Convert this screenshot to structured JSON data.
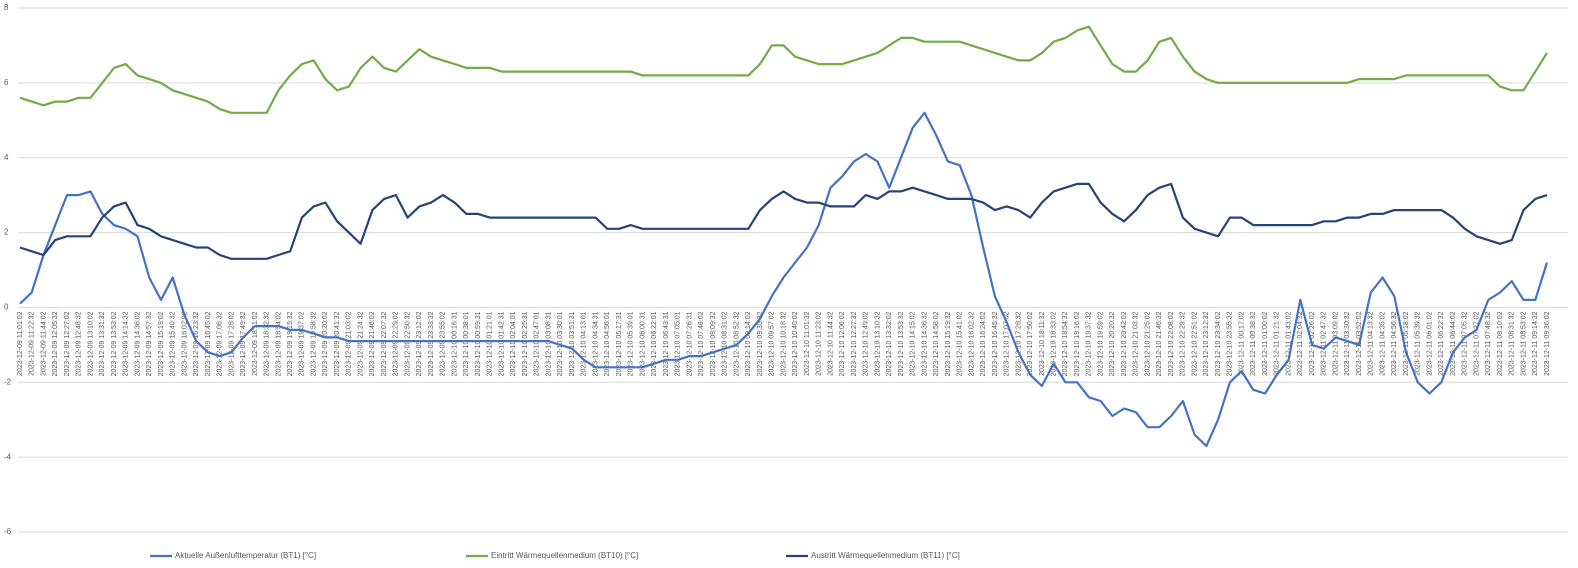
{
  "chart_data": {
    "type": "line",
    "categories": [
      "2023-12-09 11:01:02",
      "2023-12-09 11:22:32",
      "2023-12-09 11:44:02",
      "2023-12-09 12:05:32",
      "2023-12-09 12:27:02",
      "2023-12-09 12:48:32",
      "2023-12-09 13:10:02",
      "2023-12-09 13:31:32",
      "2023-12-09 13:53:02",
      "2023-12-09 14:14:32",
      "2023-12-09 14:36:02",
      "2023-12-09 14:57:32",
      "2023-12-09 15:19:02",
      "2023-12-09 15:40:32",
      "2023-12-09 16:02:02",
      "2023-12-09 16:23:32",
      "2023-12-09 16:45:02",
      "2023-12-09 17:06:32",
      "2023-12-09 17:28:02",
      "2023-12-09 17:49:32",
      "2023-12-09 18:11:02",
      "2023-12-09 18:32:32",
      "2023-12-09 18:54:02",
      "2023-12-09 19:15:32",
      "2023-12-09 19:37:02",
      "2023-12-09 19:58:32",
      "2023-12-09 20:20:02",
      "2023-12-09 20:41:32",
      "2023-12-09 21:03:02",
      "2023-12-09 21:24:32",
      "2023-12-09 21:46:02",
      "2023-12-09 22:07:32",
      "2023-12-09 22:29:02",
      "2023-12-09 22:50:32",
      "2023-12-09 23:12:02",
      "2023-12-09 23:33:32",
      "2023-12-09 23:55:02",
      "2023-12-10 00:16:31",
      "2023-12-10 00:38:01",
      "2023-12-10 00:59:31",
      "2023-12-10 01:21:01",
      "2023-12-10 01:42:31",
      "2023-12-10 02:04:01",
      "2023-12-10 02:25:31",
      "2023-12-10 02:47:01",
      "2023-12-10 03:08:31",
      "2023-12-10 03:30:01",
      "2023-12-10 03:51:31",
      "2023-12-10 04:13:01",
      "2023-12-10 04:34:31",
      "2023-12-10 04:56:01",
      "2023-12-10 05:17:31",
      "2023-12-10 05:39:01",
      "2023-12-10 06:00:31",
      "2023-12-10 06:22:01",
      "2023-12-10 06:43:31",
      "2023-12-10 07:05:01",
      "2023-12-10 07:26:31",
      "2023-12-10 07:48:02",
      "2023-12-10 08:09:32",
      "2023-12-10 08:31:02",
      "2023-12-10 08:52:32",
      "2023-12-10 09:14:02",
      "2023-12-10 09:35:32",
      "2023-12-10 09:57:02",
      "2023-12-10 10:18:32",
      "2023-12-10 10:40:02",
      "2023-12-10 11:01:32",
      "2023-12-10 11:23:02",
      "2023-12-10 11:44:32",
      "2023-12-10 12:06:02",
      "2023-12-10 12:27:32",
      "2023-12-10 12:49:02",
      "2023-12-10 13:10:32",
      "2023-12-10 13:32:02",
      "2023-12-10 13:53:32",
      "2023-12-10 14:15:02",
      "2023-12-10 14:36:32",
      "2023-12-10 14:58:02",
      "2023-12-10 15:19:32",
      "2023-12-10 15:41:02",
      "2023-12-10 16:02:32",
      "2023-12-10 16:24:02",
      "2023-12-10 16:45:32",
      "2023-12-10 17:07:02",
      "2023-12-10 17:28:32",
      "2023-12-10 17:50:02",
      "2023-12-10 18:11:32",
      "2023-12-10 18:33:02",
      "2023-12-10 18:54:32",
      "2023-12-10 19:16:02",
      "2023-12-10 19:37:32",
      "2023-12-10 19:59:02",
      "2023-12-10 20:20:32",
      "2023-12-10 20:42:02",
      "2023-12-10 21:03:32",
      "2023-12-10 21:25:02",
      "2023-12-10 21:46:32",
      "2023-12-10 22:08:02",
      "2023-12-10 22:29:32",
      "2023-12-10 22:51:02",
      "2023-12-10 23:12:32",
      "2023-12-10 23:34:02",
      "2023-12-10 23:55:32",
      "2023-12-11 00:17:02",
      "2023-12-11 00:38:32",
      "2023-12-11 01:00:02",
      "2023-12-11 01:21:32",
      "2023-12-11 01:43:02",
      "2023-12-11 02:04:32",
      "2023-12-11 02:26:02",
      "2023-12-11 02:47:32",
      "2023-12-11 03:09:02",
      "2023-12-11 03:30:32",
      "2023-12-11 03:52:02",
      "2023-12-11 04:13:32",
      "2023-12-11 04:35:02",
      "2023-12-11 04:56:32",
      "2023-12-11 05:18:02",
      "2023-12-11 05:39:32",
      "2023-12-11 06:01:02",
      "2023-12-11 06:22:32",
      "2023-12-11 06:44:02",
      "2023-12-11 07:05:32",
      "2023-12-11 07:27:02",
      "2023-12-11 07:48:32",
      "2023-12-11 08:10:02",
      "2023-12-11 08:31:32",
      "2023-12-11 08:53:02",
      "2023-12-11 09:14:32",
      "2023-12-11 09:36:02"
    ],
    "series": [
      {
        "name": "Aktuelle Außenlufttemperatur (BT1) [°C]",
        "color": "#4472c4",
        "values": [
          0.1,
          0.4,
          1.4,
          2.2,
          3.0,
          3.0,
          3.1,
          2.5,
          2.2,
          2.1,
          1.9,
          0.8,
          0.2,
          0.8,
          -0.2,
          -0.9,
          -1.2,
          -1.3,
          -1.2,
          -0.8,
          -0.5,
          -0.5,
          -0.5,
          -0.6,
          -0.6,
          -0.7,
          -0.8,
          -0.8,
          -0.9,
          -0.9,
          -0.9,
          -0.9,
          -0.9,
          -0.9,
          -0.9,
          -0.9,
          -0.9,
          -0.9,
          -0.9,
          -0.9,
          -0.9,
          -0.9,
          -0.9,
          -0.9,
          -0.9,
          -0.9,
          -1.0,
          -1.1,
          -1.4,
          -1.6,
          -1.6,
          -1.6,
          -1.6,
          -1.6,
          -1.5,
          -1.4,
          -1.4,
          -1.3,
          -1.3,
          -1.2,
          -1.1,
          -1.0,
          -0.7,
          -0.3,
          0.3,
          0.8,
          1.2,
          1.6,
          2.2,
          3.2,
          3.5,
          3.9,
          4.1,
          3.9,
          3.2,
          4.0,
          4.8,
          5.2,
          4.6,
          3.9,
          3.8,
          3.0,
          1.6,
          0.3,
          -0.4,
          -1.2,
          -1.8,
          -2.1,
          -1.5,
          -2.0,
          -2.0,
          -2.4,
          -2.5,
          -2.9,
          -2.7,
          -2.8,
          -3.2,
          -3.2,
          -2.9,
          -2.5,
          -3.4,
          -3.7,
          -3.0,
          -2.0,
          -1.7,
          -2.2,
          -2.3,
          -1.8,
          -1.4,
          0.2,
          -1.0,
          -1.1,
          -0.8,
          -0.9,
          -1.0,
          0.4,
          0.8,
          0.3,
          -1.2,
          -2.0,
          -2.3,
          -2.0,
          -1.2,
          -0.8,
          -0.6,
          0.2,
          0.4,
          0.7,
          0.2,
          0.2,
          1.2
        ]
      },
      {
        "name": "Eintritt Wärmequellenmedium (BT10) [°C]",
        "color": "#70ad47",
        "values": [
          5.6,
          5.5,
          5.4,
          5.5,
          5.5,
          5.6,
          5.6,
          6.0,
          6.4,
          6.5,
          6.2,
          6.1,
          6.0,
          5.8,
          5.7,
          5.6,
          5.5,
          5.3,
          5.2,
          5.2,
          5.2,
          5.2,
          5.8,
          6.2,
          6.5,
          6.6,
          6.1,
          5.8,
          5.9,
          6.4,
          6.7,
          6.4,
          6.3,
          6.6,
          6.9,
          6.7,
          6.6,
          6.5,
          6.4,
          6.4,
          6.4,
          6.3,
          6.3,
          6.3,
          6.3,
          6.3,
          6.3,
          6.3,
          6.3,
          6.3,
          6.3,
          6.3,
          6.3,
          6.2,
          6.2,
          6.2,
          6.2,
          6.2,
          6.2,
          6.2,
          6.2,
          6.2,
          6.2,
          6.5,
          7.0,
          7.0,
          6.7,
          6.6,
          6.5,
          6.5,
          6.5,
          6.6,
          6.7,
          6.8,
          7.0,
          7.2,
          7.2,
          7.1,
          7.1,
          7.1,
          7.1,
          7.0,
          6.9,
          6.8,
          6.7,
          6.6,
          6.6,
          6.8,
          7.1,
          7.2,
          7.4,
          7.5,
          7.0,
          6.5,
          6.3,
          6.3,
          6.6,
          7.1,
          7.2,
          6.7,
          6.3,
          6.1,
          6.0,
          6.0,
          6.0,
          6.0,
          6.0,
          6.0,
          6.0,
          6.0,
          6.0,
          6.0,
          6.0,
          6.0,
          6.1,
          6.1,
          6.1,
          6.1,
          6.2,
          6.2,
          6.2,
          6.2,
          6.2,
          6.2,
          6.2,
          6.2,
          5.9,
          5.8,
          5.8,
          6.3,
          6.8
        ]
      },
      {
        "name": "Austritt Wärmequellenmedium (BT11) [°C]",
        "color": "#264478",
        "values": [
          1.6,
          1.5,
          1.4,
          1.8,
          1.9,
          1.9,
          1.9,
          2.4,
          2.7,
          2.8,
          2.2,
          2.1,
          1.9,
          1.8,
          1.7,
          1.6,
          1.6,
          1.4,
          1.3,
          1.3,
          1.3,
          1.3,
          1.4,
          1.5,
          2.4,
          2.7,
          2.8,
          2.3,
          2.0,
          1.7,
          2.6,
          2.9,
          3.0,
          2.4,
          2.7,
          2.8,
          3.0,
          2.8,
          2.5,
          2.5,
          2.4,
          2.4,
          2.4,
          2.4,
          2.4,
          2.4,
          2.4,
          2.4,
          2.4,
          2.4,
          2.1,
          2.1,
          2.2,
          2.1,
          2.1,
          2.1,
          2.1,
          2.1,
          2.1,
          2.1,
          2.1,
          2.1,
          2.1,
          2.6,
          2.9,
          3.1,
          2.9,
          2.8,
          2.8,
          2.7,
          2.7,
          2.7,
          3.0,
          2.9,
          3.1,
          3.1,
          3.2,
          3.1,
          3.0,
          2.9,
          2.9,
          2.9,
          2.8,
          2.6,
          2.7,
          2.6,
          2.4,
          2.8,
          3.1,
          3.2,
          3.3,
          3.3,
          2.8,
          2.5,
          2.3,
          2.6,
          3.0,
          3.2,
          3.3,
          2.4,
          2.1,
          2.0,
          1.9,
          2.4,
          2.4,
          2.2,
          2.2,
          2.2,
          2.2,
          2.2,
          2.2,
          2.3,
          2.3,
          2.4,
          2.4,
          2.5,
          2.5,
          2.6,
          2.6,
          2.6,
          2.6,
          2.6,
          2.4,
          2.1,
          1.9,
          1.8,
          1.7,
          1.8,
          2.6,
          2.9,
          3.0
        ]
      }
    ],
    "ylim": [
      -6,
      8
    ],
    "yticks": [
      -6,
      -4,
      -2,
      0,
      2,
      4,
      6,
      8
    ],
    "grid": true,
    "legend": "bottom"
  }
}
